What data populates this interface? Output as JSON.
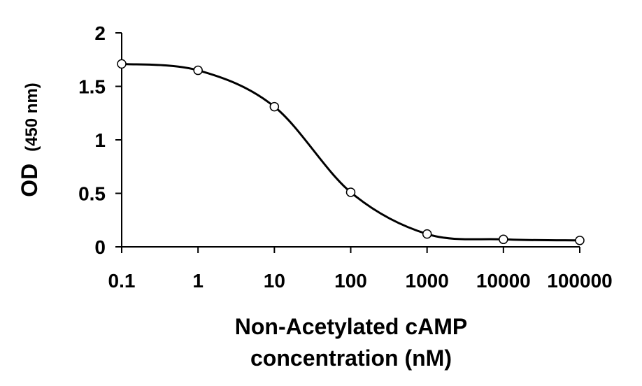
{
  "chart_data": {
    "type": "line",
    "title": "",
    "xlabel_lines": [
      "Non-Acetylated cAMP",
      "concentration (nM)"
    ],
    "ylabel_main": "OD",
    "ylabel_unit": "(450 nm)",
    "x_scale": "log",
    "xlim": [
      0.1,
      100000
    ],
    "ylim": [
      0,
      2
    ],
    "x_ticks": [
      0.1,
      1,
      10,
      100,
      1000,
      10000,
      100000
    ],
    "x_tick_labels": [
      "0.1",
      "1",
      "10",
      "100",
      "1000",
      "10000",
      "100000"
    ],
    "y_ticks": [
      0,
      0.5,
      1,
      1.5,
      2
    ],
    "y_tick_labels": [
      "0",
      "0.5",
      "1",
      "1.5",
      "2"
    ],
    "grid": false,
    "legend": "none",
    "series": [
      {
        "x": [
          0.1,
          1,
          10,
          100,
          1000,
          10000,
          100000
        ],
        "y": [
          1.71,
          1.65,
          1.31,
          0.51,
          0.12,
          0.07,
          0.06
        ]
      }
    ],
    "curve_color": "#000000",
    "marker_fill": "#ffffff",
    "marker_stroke": "#000000"
  }
}
